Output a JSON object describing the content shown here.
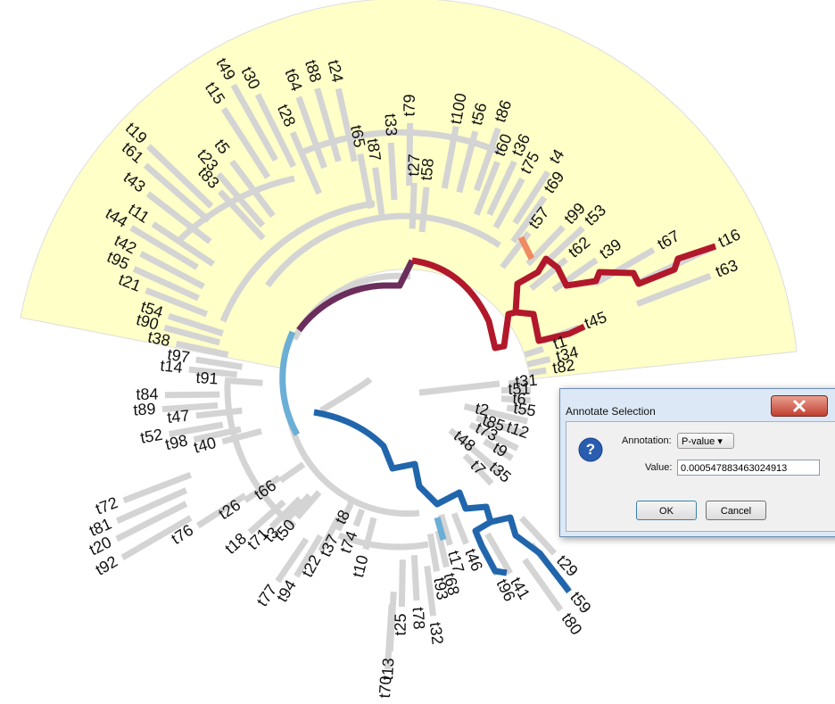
{
  "tree": {
    "tip_labels": [
      "t19",
      "t61",
      "t43",
      "t11",
      "t44",
      "t42",
      "t95",
      "t21",
      "t54",
      "t90",
      "t38",
      "t97",
      "t14",
      "t91",
      "t84",
      "t89",
      "t47",
      "t52",
      "t98",
      "t40",
      "t72",
      "t81",
      "t20",
      "t92",
      "t76",
      "t26",
      "t66",
      "t18",
      "t71",
      "t3",
      "t50",
      "t77",
      "t94",
      "t22",
      "t37",
      "t74",
      "t8",
      "t10",
      "t70",
      "t13",
      "t25",
      "t78",
      "t32",
      "t93",
      "t68",
      "t17",
      "t46",
      "t96",
      "t41",
      "t59",
      "t80",
      "t29",
      "t7",
      "t35",
      "t48",
      "t9",
      "t73",
      "t85",
      "t2",
      "t12",
      "t55",
      "t6",
      "t51",
      "t31",
      "t82",
      "t34",
      "t1",
      "t45",
      "t63",
      "t16",
      "t67",
      "t39",
      "t62",
      "t53",
      "t99",
      "t57",
      "t69",
      "t4",
      "t75",
      "t36",
      "t60",
      "t86",
      "t56",
      "t100",
      "t58",
      "t27",
      "t79",
      "t33",
      "t87",
      "t65",
      "t28",
      "t64",
      "t88",
      "t24",
      "t30",
      "t49",
      "t15",
      "t5",
      "t23",
      "t83"
    ]
  },
  "dialog": {
    "title": "Annotate Selection",
    "annotation_label": "Annotation:",
    "annotation_value": "P-value",
    "value_label": "Value:",
    "value": "0.000547883463024913",
    "ok": "OK",
    "cancel": "Cancel"
  }
}
